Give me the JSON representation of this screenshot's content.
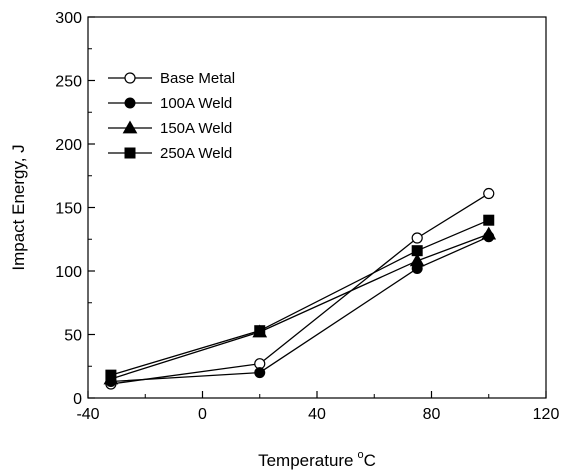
{
  "chart_data": {
    "type": "line",
    "title": "",
    "xlabel": "Temperature",
    "xlabel_sup": "o",
    "xlabel_unit": "C",
    "ylabel": "Impact Energy, J",
    "xlim": [
      -40,
      120
    ],
    "ylim": [
      0,
      300
    ],
    "xticks": [
      "-40",
      "0",
      "40",
      "80",
      "120"
    ],
    "yticks": [
      "0",
      "50",
      "100",
      "150",
      "200",
      "250",
      "300"
    ],
    "grid": false,
    "legend_position": "upper-left",
    "x": [
      -32,
      20,
      75,
      100
    ],
    "series": [
      {
        "name": "Base Metal",
        "marker": "circle-open",
        "values": [
          11,
          27,
          126,
          161
        ]
      },
      {
        "name": "100A Weld",
        "marker": "circle-filled",
        "values": [
          13,
          20,
          102,
          127
        ]
      },
      {
        "name": "150A Weld",
        "marker": "triangle-filled",
        "values": [
          15,
          52,
          108,
          129
        ]
      },
      {
        "name": "250A Weld",
        "marker": "square-filled",
        "values": [
          18,
          53,
          116,
          140
        ]
      }
    ]
  }
}
